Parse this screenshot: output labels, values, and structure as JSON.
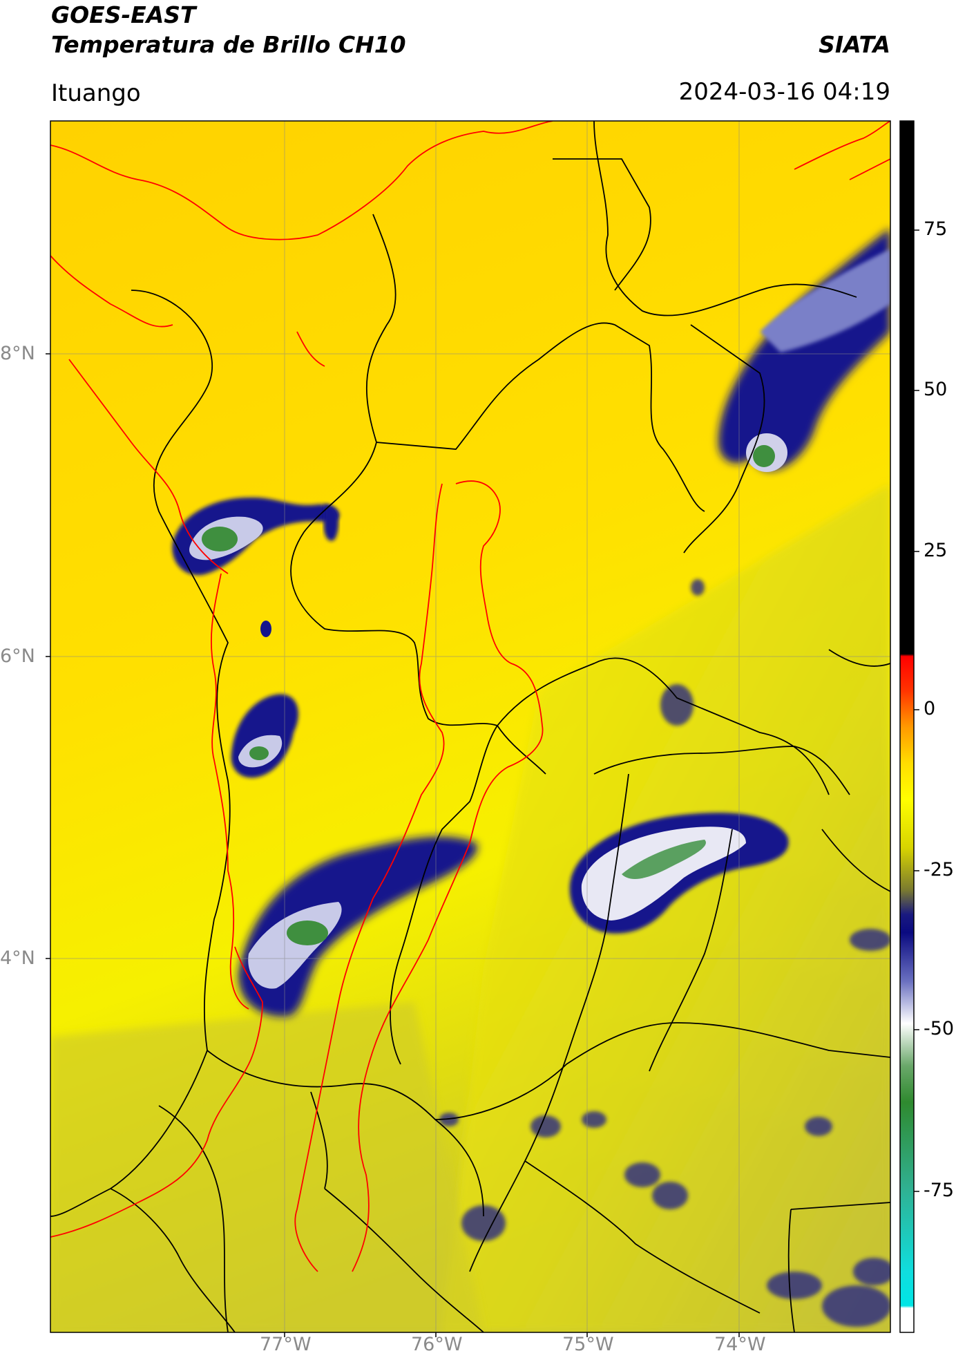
{
  "header": {
    "satellite": "GOES-EAST",
    "product": "Temperatura de Brillo CH10",
    "brand": "SIATA",
    "location": "Ituango",
    "datetime": "2024-03-16 04:19"
  },
  "axes": {
    "lat_labels": [
      "8°N",
      "6°N",
      "4°N"
    ],
    "lon_labels": [
      "77°W",
      "76°W",
      "75°W",
      "74°W"
    ]
  },
  "colorbar": {
    "ticks": [
      "75",
      "50",
      "25",
      "0",
      "-25",
      "-50",
      "-75"
    ],
    "colors": {
      "black": "#000000",
      "red": "#ff0000",
      "orange": "#ff9900",
      "yellow": "#ffff00",
      "olive": "#c9c632",
      "navy": "#0a0a80",
      "white": "#f5f5f5",
      "green": "#2f8a2f",
      "cyan": "#00e5e5"
    }
  },
  "map_colors": {
    "background_yellow": "#ffd400",
    "land_yellow": "#f7ef00",
    "south_olive": "#c9c632",
    "cloud_navy": "#14148c",
    "cloud_lavender": "#a0a4d8",
    "cloud_green": "#3f8f3f",
    "boundary_black": "#000000",
    "boundary_red": "#ff0000"
  }
}
